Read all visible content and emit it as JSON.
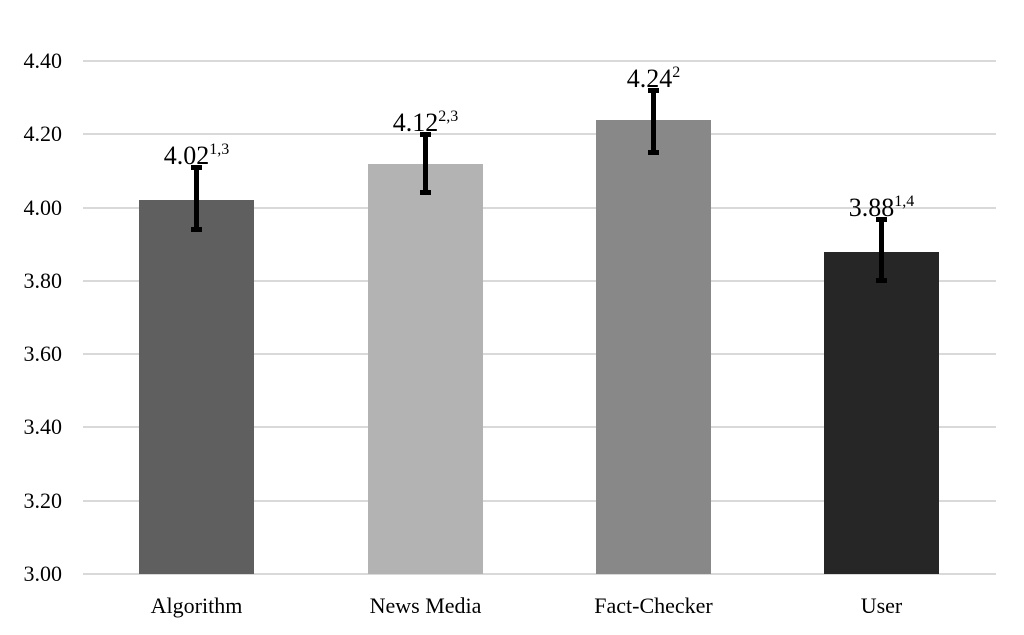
{
  "chart_data": {
    "type": "bar",
    "title": "",
    "xlabel": "",
    "ylabel": "",
    "ylim": [
      3.0,
      4.4
    ],
    "yticks": [
      "3.00",
      "3.20",
      "3.40",
      "3.60",
      "3.80",
      "4.00",
      "4.20",
      "4.40"
    ],
    "grid": true,
    "legend": null,
    "categories": [
      "Algorithm",
      "News Media",
      "Fact-Checker",
      "User"
    ],
    "values": [
      4.02,
      4.12,
      4.24,
      3.88
    ],
    "error_bars": [
      {
        "low": 3.94,
        "high": 4.11
      },
      {
        "low": 4.04,
        "high": 4.2
      },
      {
        "low": 4.15,
        "high": 4.32
      },
      {
        "low": 3.8,
        "high": 3.97
      }
    ],
    "value_labels": [
      "4.02",
      "4.12",
      "4.24",
      "3.88"
    ],
    "superscripts": [
      "1,3",
      "2,3",
      "2",
      "1,4"
    ],
    "colors": [
      "#5f5f5f",
      "#b3b3b3",
      "#888888",
      "#262626"
    ]
  }
}
